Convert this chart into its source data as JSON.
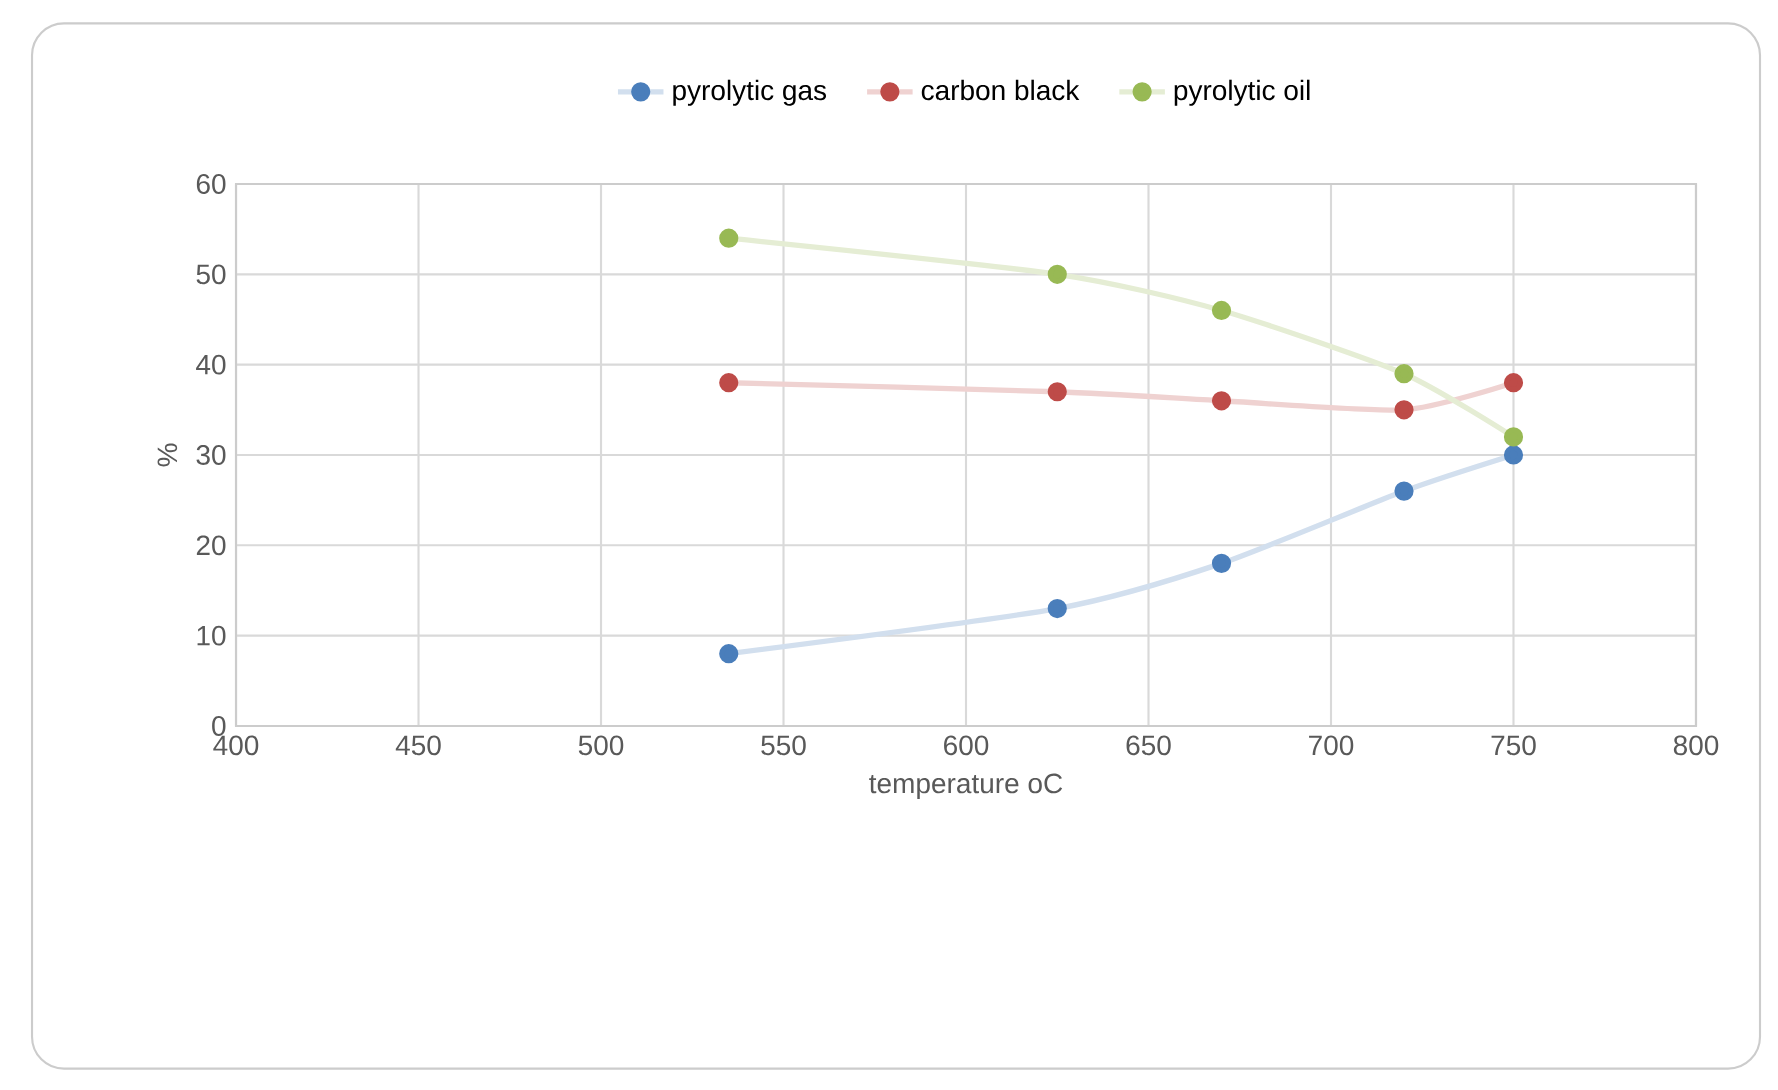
{
  "chart_data": {
    "type": "line",
    "xlabel": "temperature oC",
    "ylabel": "%",
    "x": [
      535,
      625,
      670,
      720,
      750
    ],
    "series": [
      {
        "name": "pyrolytic gas",
        "color": "#4a7ebb",
        "values": [
          8,
          13,
          18,
          26,
          30
        ]
      },
      {
        "name": "carbon black",
        "color": "#be4b48",
        "values": [
          38,
          37,
          36,
          35,
          38
        ]
      },
      {
        "name": "pyrolytic oil",
        "color": "#98b954",
        "values": [
          54,
          50,
          46,
          39,
          32
        ]
      }
    ],
    "xlim": [
      400,
      800
    ],
    "xticks": [
      400,
      450,
      500,
      550,
      600,
      650,
      700,
      750,
      800
    ],
    "ylim": [
      0,
      60
    ],
    "yticks": [
      0,
      10,
      20,
      30,
      40,
      50,
      60
    ],
    "grid": true,
    "legend": "top",
    "marker": "circle",
    "line_style": "solid"
  }
}
